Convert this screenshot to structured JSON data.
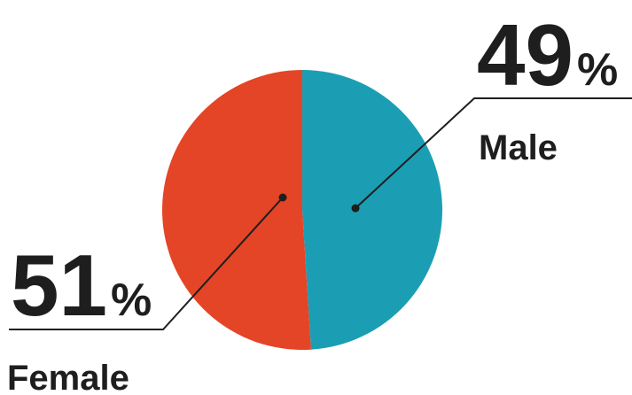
{
  "chart_data": {
    "type": "pie",
    "slices": [
      {
        "label": "Male",
        "value": 49,
        "display": "49",
        "unit": "%",
        "color": "#1b9eb4"
      },
      {
        "label": "Female",
        "value": 51,
        "display": "51",
        "unit": "%",
        "color": "#e34526"
      }
    ],
    "title": "",
    "legend": "none",
    "data_labels": "callout"
  }
}
